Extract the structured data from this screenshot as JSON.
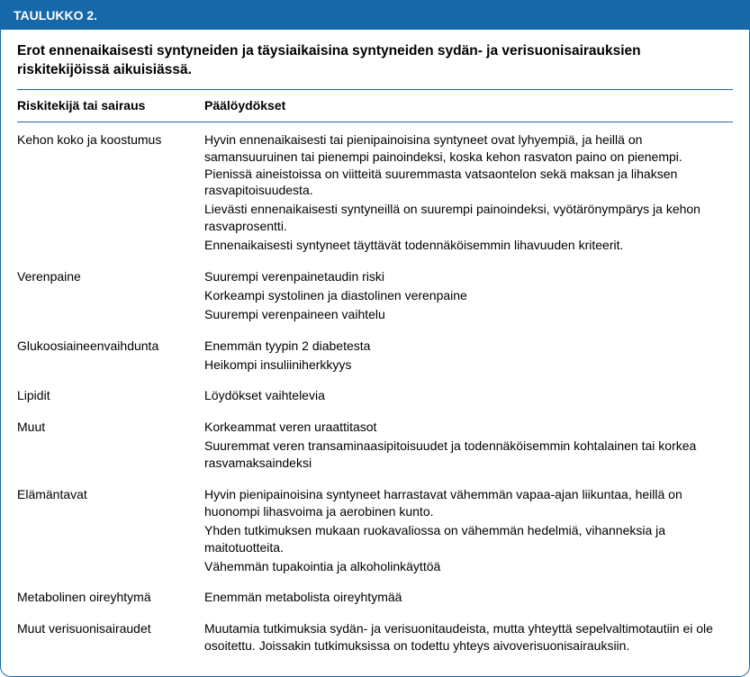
{
  "header_bar_color": "#1668a8",
  "header_bar_label": "TAULUKKO 2.",
  "caption": "Erot ennenaikaisesti syntyneiden ja täysiaikaisina syntyneiden sydän- ja verisuonisairauksien riskitekijöissä aikuisiässä.",
  "col1_header": "Riskitekijä tai sairaus",
  "col2_header": "Päälöydökset",
  "rows": [
    {
      "label": "Kehon koko ja koostumus",
      "lines": [
        "Hyvin ennenaikaisesti tai pienipainoisina syntyneet ovat lyhyempiä, ja heillä on samansuuruinen tai pienempi painoindeksi, koska kehon rasvaton paino on pienempi. Pienissä aineistoissa on viitteitä suuremmasta vatsaontelon sekä maksan ja lihaksen rasvapitoisuudesta.",
        "Lievästi ennenaikaisesti syntyneillä on suurempi painoindeksi, vyötärönympärys ja kehon rasvaprosentti.",
        "Ennenaikaisesti syntyneet täyttävät todennäköisemmin lihavuuden kriteerit."
      ]
    },
    {
      "label": "Verenpaine",
      "lines": [
        "Suurempi verenpainetaudin riski",
        "Korkeampi systolinen ja diastolinen verenpaine",
        "Suurempi verenpaineen vaihtelu"
      ]
    },
    {
      "label": "Glukoosiaineenvaihdunta",
      "lines": [
        "Enemmän tyypin 2 diabetesta",
        "Heikompi insuliiniherkkyys"
      ]
    },
    {
      "label": "Lipidit",
      "lines": [
        "Löydökset vaihtelevia"
      ]
    },
    {
      "label": "Muut",
      "lines": [
        "Korkeammat veren uraattitasot",
        "Suuremmat veren transaminaasipitoisuudet ja todennäköisemmin kohtalainen tai korkea rasvamaksaindeksi"
      ]
    },
    {
      "label": "Elämäntavat",
      "lines": [
        "Hyvin pienipainoisina syntyneet harrastavat vähemmän vapaa-ajan liikuntaa, heillä on huonompi lihasvoima ja aerobinen kunto.",
        "Yhden tutkimuksen mukaan ruokavaliossa on vähemmän hedelmiä, vihanneksia ja maitotuotteita.",
        "Vähemmän tupakointia ja alkoholinkäyttöä"
      ]
    },
    {
      "label": "Metabolinen oireyhtymä",
      "lines": [
        "Enemmän metabolista oireyhtymää"
      ]
    },
    {
      "label": "Muut verisuonisairaudet",
      "lines": [
        "Muutamia tutkimuksia sydän- ja verisuonitaudeista, mutta yhteyttä sepelvaltimotautiin ei ole osoitettu. Joissakin tutkimuksissa on todettu yhteys aivoverisuonisairauksiin."
      ]
    }
  ]
}
